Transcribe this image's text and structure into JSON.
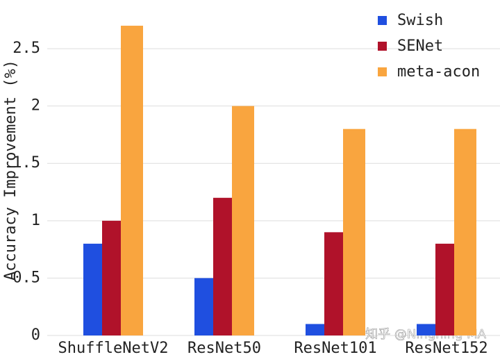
{
  "chart_data": {
    "type": "bar",
    "y_label": "Accuracy Improvement (%)",
    "categories": [
      "ShuffleNetV2",
      "ResNet50",
      "ResNet101",
      "ResNet152"
    ],
    "series": [
      {
        "name": "Swish",
        "color": "#1f4fe0",
        "values": [
          0.8,
          0.5,
          0.1,
          0.1
        ]
      },
      {
        "name": "SENet",
        "color": "#b0122a",
        "values": [
          1.0,
          1.2,
          0.9,
          0.8
        ]
      },
      {
        "name": "meta-acon",
        "color": "#f9a53f",
        "values": [
          2.7,
          2.0,
          1.8,
          1.8
        ]
      }
    ],
    "ylim": [
      0,
      2.9
    ],
    "yticks": [
      0,
      0.5,
      1,
      1.5,
      2,
      2.5
    ],
    "grid": true,
    "legend": "upper right",
    "watermark": "知乎 @Ningning MA"
  }
}
